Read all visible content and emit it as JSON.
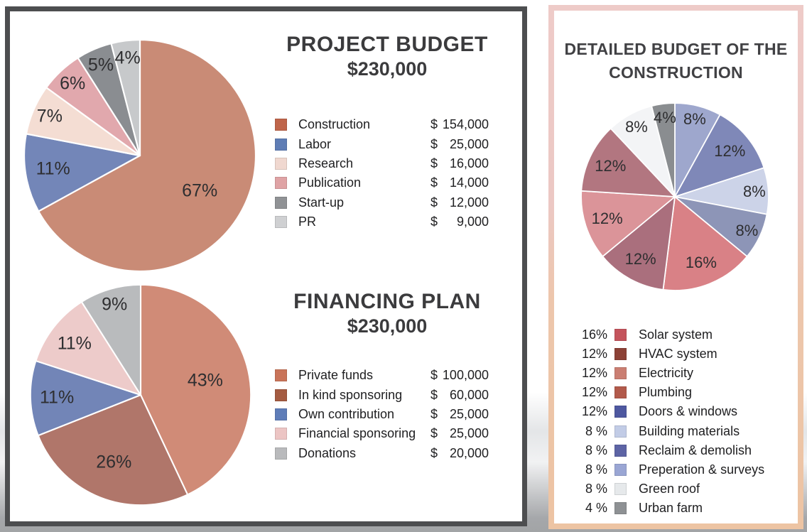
{
  "panels": {
    "left": {
      "border_color": "#4d4e50",
      "background": "#ffffff"
    },
    "right": {
      "border_gradient_top": "#eecbc8",
      "border_gradient_bottom": "#edc4a3",
      "background": "#ffffff"
    }
  },
  "chart_data": [
    {
      "id": "project-budget",
      "type": "pie",
      "title": "PROJECT BUDGET",
      "subtitle": "$230,000",
      "legend_position": "right",
      "currency": "$",
      "slices": [
        {
          "label": "Construction",
          "value": 67,
          "pie_label": "67%",
          "amount": "154,000",
          "color": "#c98b76",
          "swatch": "#bf654a"
        },
        {
          "label": "Labor",
          "value": 11,
          "pie_label": "11%",
          "amount": "25,000",
          "color": "#7386b8",
          "swatch": "#5f7db5"
        },
        {
          "label": "Research",
          "value": 7,
          "pie_label": "7%",
          "amount": "16,000",
          "color": "#f4ddd3",
          "swatch": "#f0d8d0"
        },
        {
          "label": "Publication",
          "value": 6,
          "pie_label": "6%",
          "amount": "14,000",
          "color": "#e1a8ad",
          "swatch": "#dfa3a5"
        },
        {
          "label": "Start-up",
          "value": 5,
          "pie_label": "5%",
          "amount": "12,000",
          "color": "#8a8d91",
          "swatch": "#909295"
        },
        {
          "label": "PR",
          "value": 4,
          "pie_label": "4%",
          "amount": "9,000",
          "color": "#c7c9cb",
          "swatch": "#cfd0d2"
        }
      ]
    },
    {
      "id": "financing-plan",
      "type": "pie",
      "title": "FINANCING PLAN",
      "subtitle": "$230,000",
      "legend_position": "right",
      "currency": "$",
      "slices": [
        {
          "label": "Private funds",
          "value": 43,
          "pie_label": "43%",
          "amount": "100,000",
          "color": "#d08b77",
          "swatch": "#c97459"
        },
        {
          "label": "In kind sponsoring",
          "value": 26,
          "pie_label": "26%",
          "amount": "60,000",
          "color": "#b0766a",
          "swatch": "#a45b41"
        },
        {
          "label": "Own contribution",
          "value": 11,
          "pie_label": "11%",
          "amount": "25,000",
          "color": "#7285b7",
          "swatch": "#5f7db8"
        },
        {
          "label": "Financial sponsoring",
          "value": 11,
          "pie_label": "11%",
          "amount": "25,000",
          "color": "#edcbca",
          "swatch": "#ecc5c4"
        },
        {
          "label": "Donations",
          "value": 9,
          "pie_label": "9%",
          "amount": "20,000",
          "color": "#b9bbbd",
          "swatch": "#b9babc"
        }
      ]
    },
    {
      "id": "detailed-construction-budget",
      "type": "pie",
      "title": "DETAILED BUDGET OF THE",
      "title_line2": "CONSTRUCTION",
      "legend_position": "below",
      "slices": [
        {
          "label": "Preperation & surveys",
          "value": 8,
          "pie_label": "8%",
          "color": "#9ea7cd"
        },
        {
          "label": "Doors & windows",
          "value": 12,
          "pie_label": "12%",
          "color": "#7f88b8"
        },
        {
          "label": "Building materials",
          "value": 8,
          "pie_label": "8%",
          "color": "#ccd3e8"
        },
        {
          "label": "Reclaim & demolish",
          "value": 8,
          "pie_label": "8%",
          "color": "#8d95b7"
        },
        {
          "label": "Solar system",
          "value": 16,
          "pie_label": "16%",
          "color": "#d98186"
        },
        {
          "label": "HVAC system",
          "value": 12,
          "pie_label": "12%",
          "color": "#aa6f7d"
        },
        {
          "label": "Electricity",
          "value": 12,
          "pie_label": "12%",
          "color": "#db9499"
        },
        {
          "label": "Plumbing",
          "value": 12,
          "pie_label": "12%",
          "color": "#b27680"
        },
        {
          "label": "Green roof",
          "value": 8,
          "pie_label": "8%",
          "color": "#f3f4f6"
        },
        {
          "label": "Urban farm",
          "value": 4,
          "pie_label": "4%",
          "color": "#8a8d90"
        }
      ],
      "legend": [
        {
          "percent": "16%",
          "label": "Solar system",
          "swatch": "#c4545c"
        },
        {
          "percent": "12%",
          "label": "HVAC system",
          "swatch": "#8c4136"
        },
        {
          "percent": "12%",
          "label": "Electricity",
          "swatch": "#ca7e72"
        },
        {
          "percent": "12%",
          "label": "Plumbing",
          "swatch": "#b25a4b"
        },
        {
          "percent": "12%",
          "label": "Doors & windows",
          "swatch": "#4e58a0"
        },
        {
          "percent": "8 %",
          "label": "Building materials",
          "swatch": "#c2cce6"
        },
        {
          "percent": "8 %",
          "label": "Reclaim & demolish",
          "swatch": "#5d64a5"
        },
        {
          "percent": "8 %",
          "label": "Preperation & surveys",
          "swatch": "#9aa6d4"
        },
        {
          "percent": "8 %",
          "label": "Green roof",
          "swatch": "#e6e9eb"
        },
        {
          "percent": "4 %",
          "label": "Urban farm",
          "swatch": "#8e9194"
        }
      ]
    }
  ]
}
